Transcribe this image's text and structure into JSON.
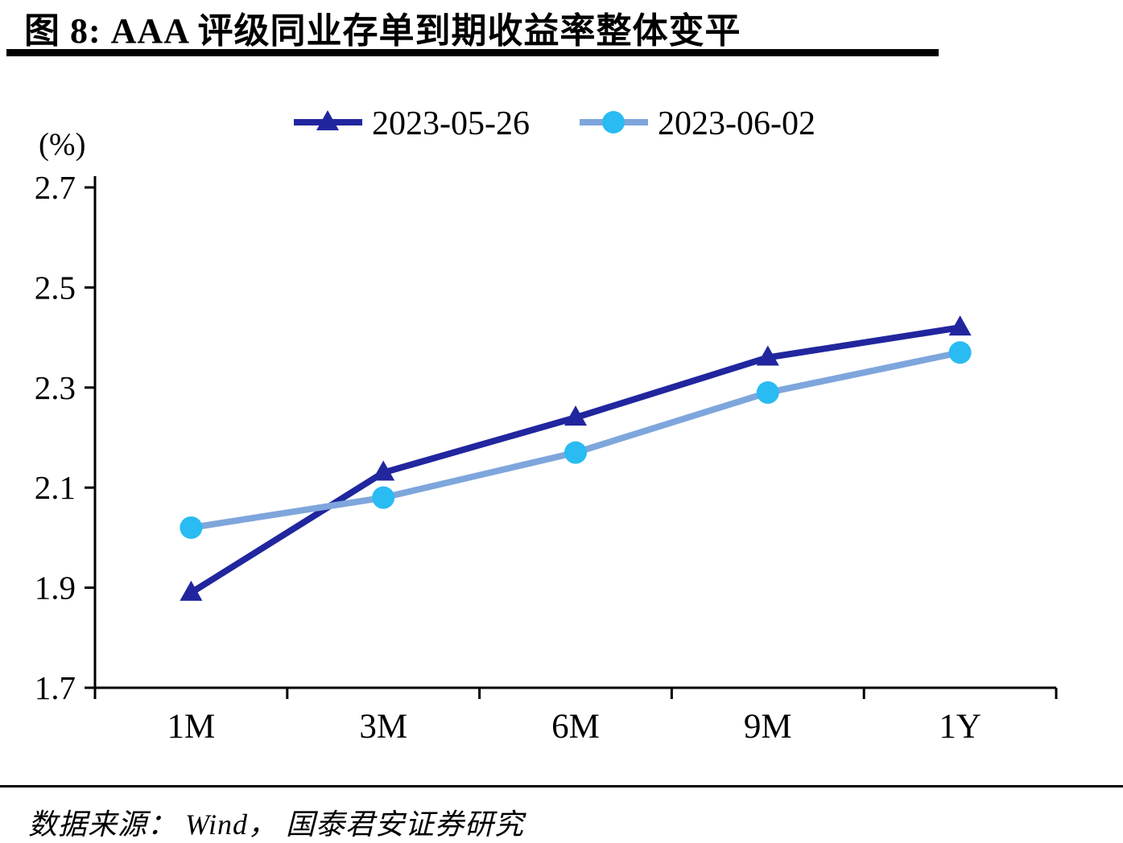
{
  "title": "图 8:  AAA 评级同业存单到期收益率整体变平",
  "source_note": "数据来源： Wind， 国泰君安证券研究",
  "colors": {
    "axis": "#000000",
    "series1": "#21269E",
    "series2_line": "#7EA6DC",
    "series2_marker": "#29BBF2"
  },
  "chart_data": {
    "type": "line",
    "title": "AAA 评级同业存单到期收益率整体变平",
    "unit_label": "(%)",
    "categories": [
      "1M",
      "3M",
      "6M",
      "9M",
      "1Y"
    ],
    "series": [
      {
        "name": "2023-05-26",
        "marker": "triangle",
        "color": "#21269E",
        "values": [
          1.89,
          2.13,
          2.24,
          2.36,
          2.42
        ]
      },
      {
        "name": "2023-06-02",
        "marker": "circle",
        "color": "#7EA6DC",
        "marker_color": "#29BBF2",
        "values": [
          2.02,
          2.08,
          2.17,
          2.29,
          2.37
        ]
      }
    ],
    "ylim": [
      1.7,
      2.7
    ],
    "yticks": [
      1.7,
      1.9,
      2.1,
      2.3,
      2.5,
      2.7
    ],
    "grid": false,
    "legend_position": "top"
  }
}
